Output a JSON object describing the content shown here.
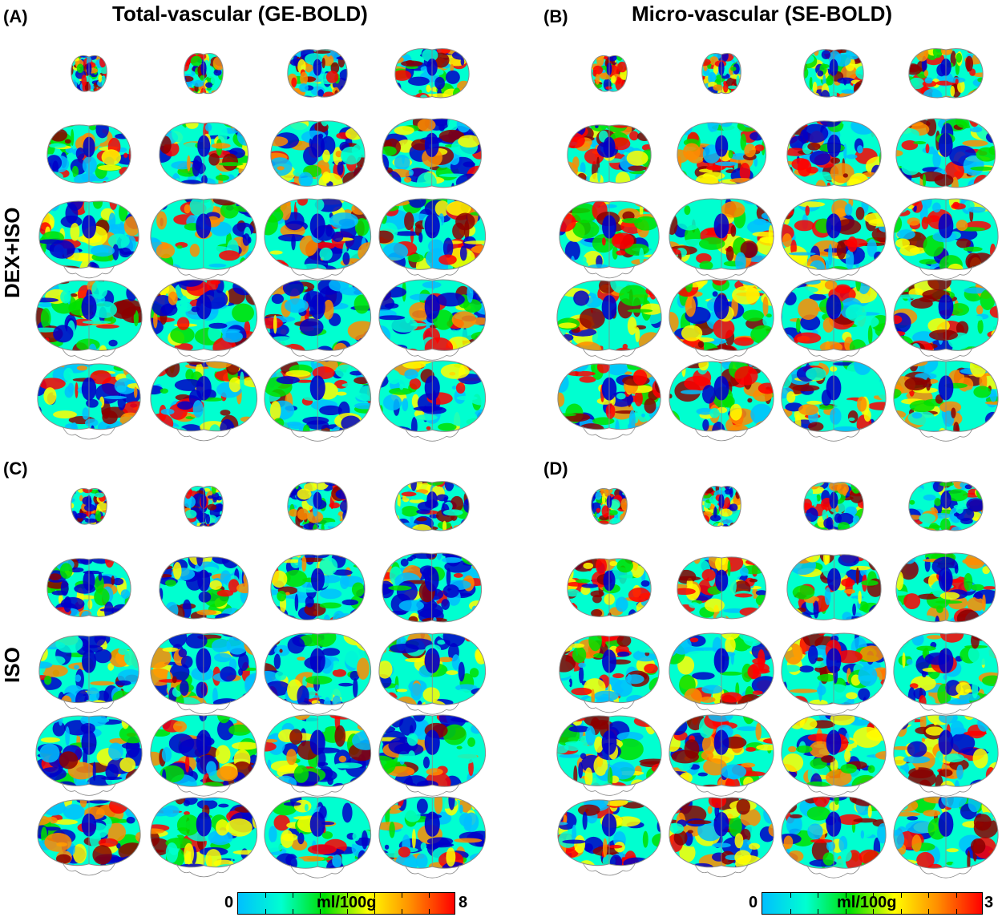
{
  "panels": {
    "A": {
      "label": "(A)",
      "title": "Total-vascular (GE-BOLD)"
    },
    "B": {
      "label": "(B)",
      "title": "Micro-vascular (SE-BOLD)"
    },
    "C": {
      "label": "(C)"
    },
    "D": {
      "label": "(D)"
    }
  },
  "rows": {
    "top": "DEX+ISO",
    "bottom": "ISO"
  },
  "colorbars": [
    {
      "min": "0",
      "max": "8",
      "unit": "ml/100g"
    },
    {
      "min": "0",
      "max": "3",
      "unit": "ml/100g"
    }
  ],
  "colormap": {
    "stops": [
      "#00bfff",
      "#00ffd0",
      "#00e000",
      "#ffff00",
      "#ff8c00",
      "#ff0000"
    ],
    "low_color": "#0000c8",
    "high_color": "#8b0000",
    "outline_color": "#8a8a8a"
  },
  "slices_per_panel": 20,
  "grid_shape": "5 rows x 4 columns of coronal brain slices"
}
